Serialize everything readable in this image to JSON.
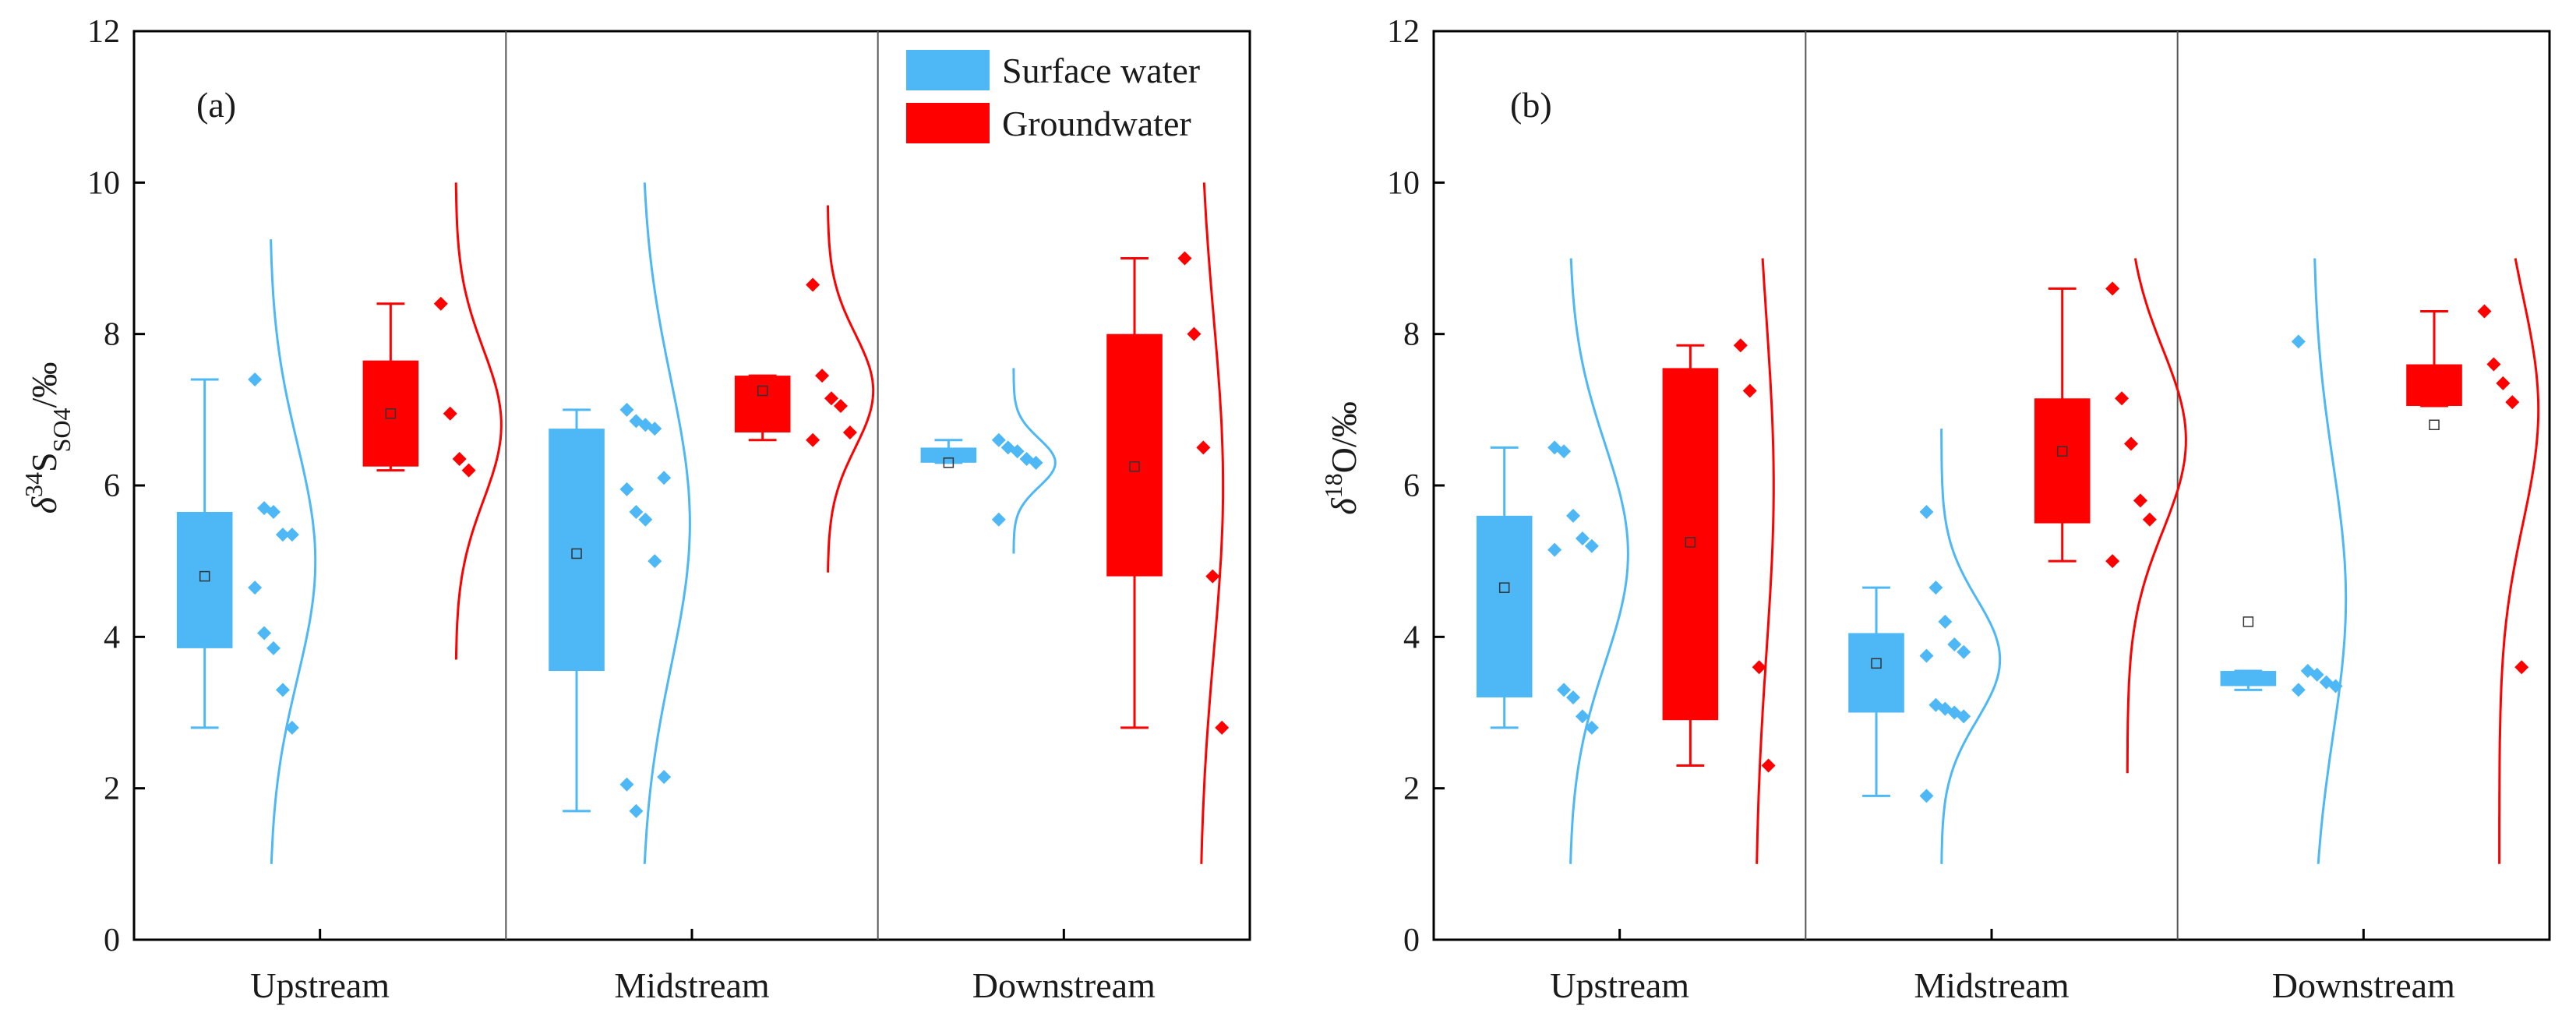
{
  "colors": {
    "surface": "#4db8f5",
    "ground": "#ff0000",
    "axis": "#000000",
    "divider": "#555555"
  },
  "legend": {
    "surface_label": "Surface water",
    "ground_label": "Groundwater"
  },
  "chart_data": [
    {
      "panel_label": "(a)",
      "type": "box",
      "ylabel_parts": {
        "delta": "δ",
        "sup": "34",
        "base": "S",
        "sub": "SO4",
        "unit": "/‰"
      },
      "ylim": [
        0,
        12
      ],
      "yticks": [
        0,
        2,
        4,
        6,
        8,
        10,
        12
      ],
      "categories": [
        "Upstream",
        "Midstream",
        "Downstream"
      ],
      "legend_position": "top-right",
      "series": [
        {
          "name": "Surface water",
          "color_key": "surface",
          "boxes": [
            {
              "category": "Upstream",
              "whisker_low": 2.8,
              "q1": 3.85,
              "q3": 5.65,
              "whisker_high": 7.4,
              "mean": 4.8,
              "points": [
                7.4,
                5.7,
                5.65,
                5.35,
                5.35,
                4.65,
                4.05,
                3.85,
                3.3,
                2.8
              ],
              "curve_range": [
                1.0,
                9.25
              ],
              "curve_center": 5.0,
              "curve_sd": 1.55,
              "curve_amp": 0.35
            },
            {
              "category": "Midstream",
              "whisker_low": 1.7,
              "q1": 3.55,
              "q3": 6.75,
              "whisker_high": 7.0,
              "mean": 5.1,
              "points": [
                7.0,
                6.85,
                6.8,
                6.75,
                6.1,
                5.95,
                5.65,
                5.55,
                5.0,
                2.15,
                2.05,
                1.7
              ],
              "curve_range": [
                1.0,
                10.0
              ],
              "curve_center": 5.5,
              "curve_sd": 1.9,
              "curve_amp": 0.37
            },
            {
              "category": "Downstream",
              "whisker_low": 6.3,
              "q1": 6.3,
              "q3": 6.5,
              "whisker_high": 6.6,
              "mean": 6.3,
              "points": [
                6.6,
                6.5,
                6.45,
                6.35,
                6.3,
                5.55
              ],
              "curve_range": [
                5.1,
                7.55
              ],
              "curve_center": 6.3,
              "curve_sd": 0.32,
              "curve_amp": 0.32
            }
          ]
        },
        {
          "name": "Groundwater",
          "color_key": "ground",
          "boxes": [
            {
              "category": "Upstream",
              "whisker_low": 6.2,
              "q1": 6.25,
              "q3": 7.65,
              "whisker_high": 8.4,
              "mean": 6.95,
              "points": [
                8.4,
                6.95,
                6.35,
                6.2
              ],
              "curve_range": [
                3.7,
                10.0
              ],
              "curve_center": 6.8,
              "curve_sd": 1.0,
              "curve_amp": 0.35
            },
            {
              "category": "Midstream",
              "whisker_low": 6.6,
              "q1": 6.7,
              "q3": 7.45,
              "whisker_high": 7.45,
              "mean": 7.25,
              "points": [
                8.65,
                7.45,
                7.15,
                7.05,
                6.7,
                6.6
              ],
              "curve_range": [
                4.85,
                9.7
              ],
              "curve_center": 7.25,
              "curve_sd": 0.75,
              "curve_amp": 0.35
            },
            {
              "category": "Downstream",
              "whisker_low": 2.8,
              "q1": 4.8,
              "q3": 8.0,
              "whisker_high": 9.0,
              "mean": 6.25,
              "points": [
                9.0,
                8.0,
                6.5,
                4.8,
                2.8
              ],
              "curve_range": [
                1.0,
                10.0
              ],
              "curve_center": 6.0,
              "curve_sd": 2.2,
              "curve_amp": 0.18
            }
          ]
        }
      ]
    },
    {
      "panel_label": "(b)",
      "type": "box",
      "ylabel_parts": {
        "delta": "δ",
        "sup": "18",
        "base": "O",
        "sub": "",
        "unit": "/‰"
      },
      "ylim": [
        0,
        12
      ],
      "yticks": [
        0,
        2,
        4,
        6,
        8,
        10,
        12
      ],
      "categories": [
        "Upstream",
        "Midstream",
        "Downstream"
      ],
      "series": [
        {
          "name": "Surface water",
          "color_key": "surface",
          "boxes": [
            {
              "category": "Upstream",
              "whisker_low": 2.8,
              "q1": 3.2,
              "q3": 5.6,
              "whisker_high": 6.5,
              "mean": 4.65,
              "points": [
                6.5,
                6.45,
                5.6,
                5.3,
                5.2,
                5.15,
                3.3,
                3.2,
                2.95,
                2.8
              ],
              "curve_range": [
                1.0,
                9.0
              ],
              "curve_center": 5.1,
              "curve_sd": 1.45,
              "curve_amp": 0.45
            },
            {
              "category": "Midstream",
              "whisker_low": 1.9,
              "q1": 3.0,
              "q3": 4.05,
              "whisker_high": 4.65,
              "mean": 3.65,
              "points": [
                5.65,
                4.65,
                4.2,
                3.9,
                3.8,
                3.75,
                3.1,
                3.05,
                3.0,
                2.95,
                1.9
              ],
              "curve_range": [
                1.0,
                6.75
              ],
              "curve_center": 3.7,
              "curve_sd": 0.8,
              "curve_amp": 0.45
            },
            {
              "category": "Downstream",
              "whisker_low": 3.3,
              "q1": 3.35,
              "q3": 3.55,
              "whisker_high": 3.55,
              "mean": 4.2,
              "points": [
                7.9,
                3.55,
                3.5,
                3.4,
                3.35,
                3.3
              ],
              "curve_range": [
                1.0,
                9.0
              ],
              "curve_center": 4.5,
              "curve_sd": 1.8,
              "curve_amp": 0.25
            }
          ]
        },
        {
          "name": "Groundwater",
          "color_key": "ground",
          "boxes": [
            {
              "category": "Upstream",
              "whisker_low": 2.3,
              "q1": 2.9,
              "q3": 7.55,
              "whisker_high": 7.85,
              "mean": 5.25,
              "points": [
                7.85,
                7.25,
                3.6,
                2.3
              ],
              "curve_range": [
                1.0,
                9.0
              ],
              "curve_center": 6.0,
              "curve_sd": 2.2,
              "curve_amp": 0.14
            },
            {
              "category": "Midstream",
              "whisker_low": 5.0,
              "q1": 5.5,
              "q3": 7.15,
              "whisker_high": 8.6,
              "mean": 6.45,
              "points": [
                8.6,
                7.15,
                6.55,
                5.8,
                5.55,
                5.0
              ],
              "curve_range": [
                2.2,
                9.0
              ],
              "curve_center": 6.6,
              "curve_sd": 1.2,
              "curve_amp": 0.45
            },
            {
              "category": "Downstream",
              "whisker_low": 7.05,
              "q1": 7.05,
              "q3": 7.6,
              "whisker_high": 8.3,
              "mean": 6.8,
              "points": [
                8.3,
                7.6,
                7.35,
                7.1,
                3.6
              ],
              "curve_range": [
                1.0,
                9.0
              ],
              "curve_center": 7.0,
              "curve_sd": 1.5,
              "curve_amp": 0.3
            }
          ]
        }
      ]
    }
  ]
}
